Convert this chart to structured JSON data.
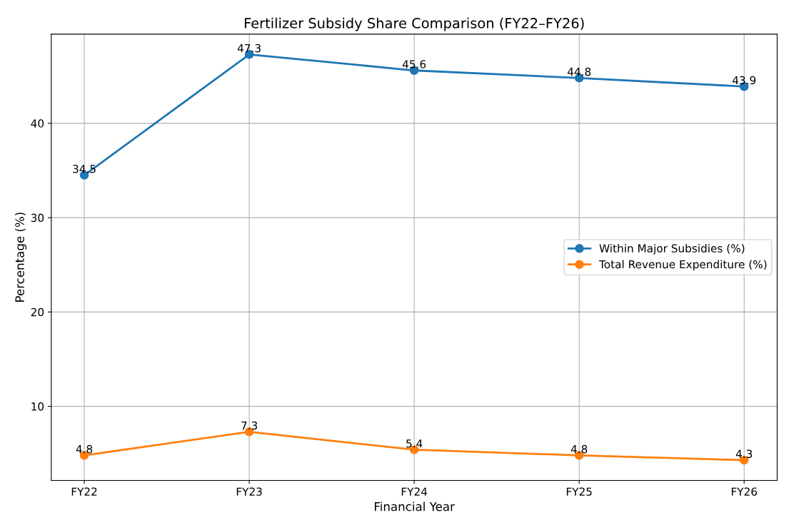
{
  "chart_data": {
    "type": "line",
    "title": "Fertilizer Subsidy Share Comparison (FY22–FY26)",
    "xlabel": "Financial Year",
    "ylabel": "Percentage (%)",
    "categories": [
      "FY22",
      "FY23",
      "FY24",
      "FY25",
      "FY26"
    ],
    "series": [
      {
        "name": "Within Major Subsidies (%)",
        "color": "#1f77b4",
        "values": [
          34.5,
          47.3,
          45.6,
          44.8,
          43.9
        ]
      },
      {
        "name": "Total Revenue Expenditure (%)",
        "color": "#ff7f0e",
        "values": [
          4.8,
          7.3,
          5.4,
          4.8,
          4.3
        ]
      }
    ],
    "ylim": [
      2.15,
      49.45
    ],
    "yticks": [
      10,
      20,
      30,
      40
    ],
    "grid": true,
    "legend": "center right",
    "marker": "circle",
    "line_style": "solid",
    "data_labels": true
  }
}
